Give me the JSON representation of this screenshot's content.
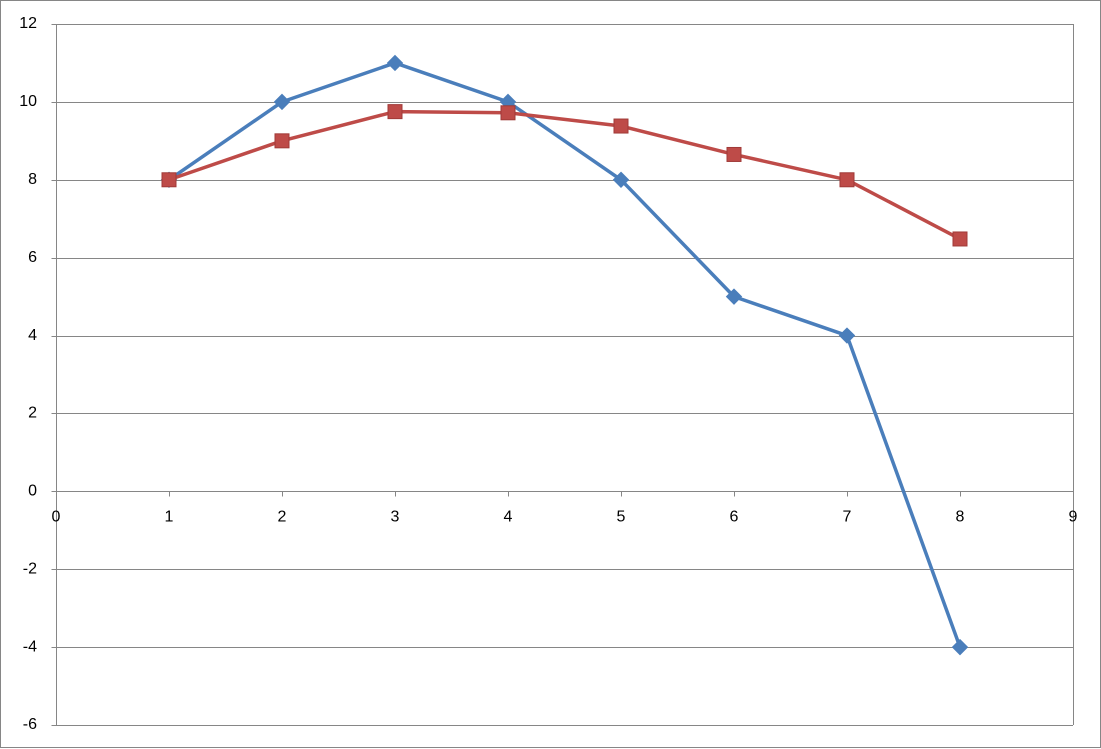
{
  "chart_data": {
    "type": "scatter",
    "title": "",
    "xlabel": "",
    "ylabel": "",
    "xlim": [
      0,
      9
    ],
    "ylim": [
      -6,
      12
    ],
    "x_ticks": [
      0,
      1,
      2,
      3,
      4,
      5,
      6,
      7,
      8,
      9
    ],
    "y_ticks": [
      -6,
      -4,
      -2,
      0,
      2,
      4,
      6,
      8,
      10,
      12
    ],
    "grid": "horizontal major gridlines",
    "legend": "none",
    "series": [
      {
        "marker": "diamond",
        "line": "straight lines with markers",
        "color": "#4a7ebb",
        "points": [
          {
            "x": 1,
            "y": 8
          },
          {
            "x": 2,
            "y": 10
          },
          {
            "x": 3,
            "y": 11
          },
          {
            "x": 4,
            "y": 10
          },
          {
            "x": 5,
            "y": 8
          },
          {
            "x": 6,
            "y": 5
          },
          {
            "x": 7,
            "y": 4
          },
          {
            "x": 8,
            "y": -4
          }
        ]
      },
      {
        "marker": "square",
        "line": "straight lines with markers",
        "color": "#be4b48",
        "points": [
          {
            "x": 1,
            "y": 8
          },
          {
            "x": 2,
            "y": 9
          },
          {
            "x": 3,
            "y": 9.75
          },
          {
            "x": 4,
            "y": 9.72
          },
          {
            "x": 5,
            "y": 9.38
          },
          {
            "x": 6,
            "y": 8.65
          },
          {
            "x": 7,
            "y": 8
          },
          {
            "x": 8,
            "y": 6.48
          }
        ]
      }
    ],
    "colors": {
      "gridline": "#868686",
      "axis": "#868686",
      "border": "#868686"
    }
  }
}
